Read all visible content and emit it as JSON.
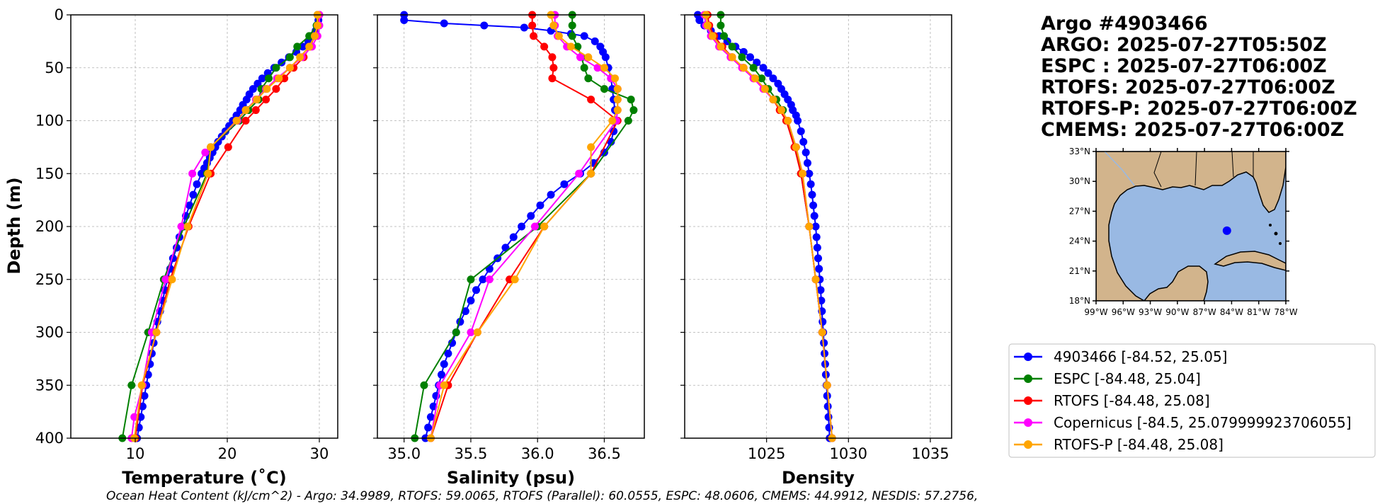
{
  "chart_data": [
    {
      "type": "line",
      "xlabel": "Temperature (˚C)",
      "ylabel": "Depth (m)",
      "xlim": [
        3,
        32
      ],
      "ylim": [
        400,
        0
      ],
      "xticks": [
        10,
        20,
        30
      ],
      "yticks": [
        0,
        50,
        100,
        150,
        200,
        250,
        300,
        350,
        400
      ],
      "grid": true,
      "series": [
        {
          "name": "4903466",
          "color": "#0000ff",
          "depth": [
            0,
            5,
            10,
            15,
            20,
            25,
            30,
            35,
            40,
            45,
            50,
            55,
            60,
            65,
            70,
            75,
            80,
            85,
            90,
            95,
            100,
            105,
            110,
            115,
            120,
            125,
            130,
            135,
            140,
            145,
            150,
            160,
            170,
            180,
            190,
            200,
            210,
            220,
            230,
            240,
            250,
            260,
            270,
            280,
            290,
            300,
            310,
            320,
            330,
            340,
            350,
            360,
            370,
            380,
            390,
            400
          ],
          "x": [
            29.9,
            29.9,
            29.8,
            29.6,
            29.2,
            28.8,
            28.2,
            27.5,
            26.7,
            25.9,
            25.1,
            24.4,
            23.8,
            23.3,
            22.8,
            22.4,
            22.1,
            21.7,
            21.4,
            21.0,
            20.6,
            20.2,
            19.8,
            19.4,
            19.0,
            18.7,
            18.4,
            18.1,
            17.8,
            17.5,
            17.2,
            16.7,
            16.3,
            15.9,
            15.5,
            15.2,
            14.8,
            14.5,
            14.1,
            13.8,
            13.5,
            13.2,
            13.0,
            12.7,
            12.4,
            12.2,
            12.0,
            11.8,
            11.6,
            11.4,
            11.2,
            11.0,
            10.8,
            10.6,
            10.4,
            10.2
          ]
        },
        {
          "name": "ESPC",
          "color": "#008000",
          "depth": [
            0,
            10,
            20,
            30,
            40,
            50,
            60,
            70,
            80,
            90,
            100,
            125,
            150,
            200,
            250,
            300,
            350,
            400
          ],
          "x": [
            29.8,
            29.7,
            28.9,
            27.6,
            26.8,
            25.3,
            24.5,
            23.7,
            23.4,
            22.3,
            21.3,
            18.2,
            17.8,
            15.3,
            13.1,
            11.4,
            9.6,
            8.6
          ]
        },
        {
          "name": "RTOFS",
          "color": "#ff0000",
          "depth": [
            0,
            10,
            20,
            30,
            40,
            50,
            60,
            70,
            80,
            90,
            100,
            125,
            150,
            200,
            250,
            300,
            350,
            400
          ],
          "x": [
            30.0,
            29.9,
            29.5,
            29.0,
            28.3,
            27.2,
            26.2,
            25.3,
            24.2,
            23.1,
            22.0,
            20.1,
            18.2,
            15.8,
            13.8,
            12.3,
            10.8,
            10.0
          ]
        },
        {
          "name": "Copernicus",
          "color": "#ff00ff",
          "depth": [
            0,
            10,
            20,
            30,
            40,
            50,
            60,
            70,
            80,
            90,
            100,
            130,
            150,
            200,
            250,
            300,
            350,
            380,
            400
          ],
          "x": [
            30.0,
            30.0,
            29.8,
            29.2,
            28.1,
            26.8,
            25.4,
            24.2,
            23.1,
            22.0,
            21.1,
            17.6,
            16.2,
            15.0,
            13.3,
            11.8,
            10.8,
            9.9,
            9.6
          ]
        },
        {
          "name": "RTOFS-P",
          "color": "#ffa500",
          "depth": [
            0,
            10,
            20,
            30,
            40,
            50,
            60,
            70,
            80,
            90,
            100,
            125,
            150,
            200,
            250,
            300,
            350,
            400
          ],
          "x": [
            29.8,
            29.8,
            29.5,
            28.9,
            27.9,
            26.8,
            25.6,
            24.3,
            23.2,
            22.0,
            21.0,
            18.2,
            17.9,
            15.7,
            14.0,
            12.3,
            10.7,
            9.9
          ]
        }
      ]
    },
    {
      "type": "line",
      "xlabel": "Salinity (psu)",
      "xlim": [
        34.8,
        36.8
      ],
      "ylim": [
        400,
        0
      ],
      "xticks": [
        35.0,
        35.5,
        36.0,
        36.5
      ],
      "xticklabels": [
        "35.0",
        "35.5",
        "36.0",
        "36.5"
      ],
      "grid": true,
      "series": [
        {
          "name": "4903466",
          "color": "#0000ff",
          "depth": [
            0,
            5,
            8,
            10,
            12,
            15,
            18,
            20,
            25,
            30,
            35,
            40,
            50,
            60,
            70,
            80,
            90,
            100,
            110,
            120,
            130,
            140,
            150,
            160,
            170,
            180,
            190,
            200,
            210,
            220,
            230,
            240,
            250,
            260,
            270,
            280,
            290,
            300,
            310,
            320,
            330,
            340,
            350,
            360,
            370,
            380,
            390,
            400
          ],
          "x": [
            35.0,
            35.0,
            35.3,
            35.6,
            35.9,
            36.1,
            36.25,
            36.35,
            36.43,
            36.47,
            36.49,
            36.51,
            36.53,
            36.55,
            36.56,
            36.57,
            36.58,
            36.58,
            36.57,
            36.55,
            36.5,
            36.42,
            36.32,
            36.2,
            36.1,
            36.02,
            35.95,
            35.88,
            35.82,
            35.76,
            35.7,
            35.64,
            35.59,
            35.54,
            35.5,
            35.46,
            35.42,
            35.39,
            35.36,
            35.33,
            35.3,
            35.28,
            35.26,
            35.24,
            35.22,
            35.2,
            35.18,
            35.16
          ]
        },
        {
          "name": "ESPC",
          "color": "#008000",
          "depth": [
            0,
            10,
            20,
            30,
            40,
            50,
            60,
            70,
            80,
            90,
            100,
            150,
            200,
            250,
            300,
            350,
            400
          ],
          "x": [
            36.26,
            36.26,
            36.26,
            36.3,
            36.33,
            36.35,
            36.38,
            36.5,
            36.7,
            36.72,
            36.68,
            36.4,
            36.0,
            35.5,
            35.39,
            35.15,
            35.08
          ]
        },
        {
          "name": "RTOFS",
          "color": "#ff0000",
          "depth": [
            0,
            10,
            20,
            30,
            40,
            50,
            60,
            80,
            100,
            150,
            200,
            250,
            300,
            350,
            400
          ],
          "x": [
            35.96,
            35.96,
            35.97,
            36.05,
            36.11,
            36.12,
            36.11,
            36.4,
            36.6,
            36.4,
            36.05,
            35.79,
            35.55,
            35.33,
            35.2
          ]
        },
        {
          "name": "Copernicus",
          "color": "#ff00ff",
          "depth": [
            0,
            10,
            20,
            30,
            40,
            50,
            60,
            70,
            80,
            90,
            100,
            150,
            200,
            250,
            300,
            350,
            400
          ],
          "x": [
            36.13,
            36.13,
            36.15,
            36.22,
            36.32,
            36.45,
            36.55,
            36.6,
            36.6,
            36.6,
            36.59,
            36.31,
            35.98,
            35.64,
            35.5,
            35.27,
            35.2
          ]
        },
        {
          "name": "RTOFS-P",
          "color": "#ffa500",
          "depth": [
            0,
            10,
            20,
            30,
            40,
            50,
            60,
            70,
            80,
            90,
            100,
            125,
            150,
            200,
            250,
            300,
            350,
            400
          ],
          "x": [
            36.1,
            36.12,
            36.16,
            36.25,
            36.38,
            36.5,
            36.58,
            36.6,
            36.6,
            36.6,
            36.56,
            36.4,
            36.4,
            36.05,
            35.83,
            35.55,
            35.3,
            35.2
          ]
        }
      ]
    },
    {
      "type": "line",
      "xlabel": "Density",
      "xlim": [
        1020.0,
        1036.3
      ],
      "ylim": [
        400,
        0
      ],
      "xticks": [
        1025,
        1030,
        1035
      ],
      "grid": true,
      "series": [
        {
          "name": "4903466",
          "color": "#0000ff",
          "depth": [
            0,
            5,
            10,
            15,
            20,
            25,
            30,
            35,
            40,
            45,
            50,
            55,
            60,
            65,
            70,
            75,
            80,
            85,
            90,
            95,
            100,
            110,
            120,
            130,
            140,
            150,
            160,
            170,
            180,
            190,
            200,
            210,
            220,
            230,
            240,
            250,
            260,
            270,
            280,
            290,
            300,
            310,
            320,
            330,
            340,
            350,
            360,
            370,
            380,
            390,
            400
          ],
          "x": [
            1020.8,
            1020.9,
            1021.2,
            1021.6,
            1022.1,
            1022.6,
            1023.1,
            1023.6,
            1024.0,
            1024.4,
            1024.8,
            1025.1,
            1025.4,
            1025.7,
            1025.9,
            1026.1,
            1026.3,
            1026.5,
            1026.6,
            1026.8,
            1026.9,
            1027.1,
            1027.25,
            1027.4,
            1027.5,
            1027.6,
            1027.7,
            1027.78,
            1027.85,
            1027.92,
            1028.0,
            1028.05,
            1028.1,
            1028.15,
            1028.2,
            1028.25,
            1028.3,
            1028.34,
            1028.38,
            1028.42,
            1028.46,
            1028.5,
            1028.54,
            1028.58,
            1028.62,
            1028.66,
            1028.7,
            1028.74,
            1028.78,
            1028.82,
            1028.85
          ]
        },
        {
          "name": "ESPC",
          "color": "#008000",
          "depth": [
            0,
            10,
            20,
            30,
            40,
            50,
            60,
            70,
            80,
            90,
            100,
            125,
            150,
            200,
            250,
            300,
            350,
            400
          ],
          "x": [
            1022.2,
            1022.2,
            1022.4,
            1022.9,
            1023.5,
            1024.2,
            1024.7,
            1025.1,
            1025.6,
            1026.0,
            1026.2,
            1026.8,
            1027.1,
            1027.6,
            1028.0,
            1028.4,
            1028.7,
            1029.0
          ]
        },
        {
          "name": "RTOFS",
          "color": "#ff0000",
          "depth": [
            0,
            10,
            20,
            30,
            40,
            50,
            60,
            70,
            80,
            90,
            100,
            125,
            150,
            200,
            250,
            300,
            350,
            400
          ],
          "x": [
            1021.4,
            1021.5,
            1021.8,
            1022.3,
            1022.9,
            1023.6,
            1024.2,
            1024.9,
            1025.4,
            1025.8,
            1026.2,
            1026.7,
            1027.1,
            1027.6,
            1028.0,
            1028.4,
            1028.7,
            1029.0
          ]
        },
        {
          "name": "Copernicus",
          "color": "#ff00ff",
          "depth": [
            0,
            10,
            20,
            30,
            40,
            50,
            60,
            70,
            80,
            90,
            100,
            125,
            150,
            200,
            250,
            300,
            350,
            400
          ],
          "x": [
            1021.2,
            1021.3,
            1021.6,
            1022.1,
            1022.8,
            1023.5,
            1024.2,
            1024.8,
            1025.4,
            1025.9,
            1026.3,
            1026.8,
            1027.2,
            1027.6,
            1028.0,
            1028.4,
            1028.7,
            1029.0
          ]
        },
        {
          "name": "RTOFS-P",
          "color": "#ffa500",
          "depth": [
            0,
            10,
            20,
            30,
            40,
            50,
            60,
            70,
            80,
            90,
            100,
            125,
            150,
            200,
            250,
            300,
            350,
            400
          ],
          "x": [
            1021.3,
            1021.4,
            1021.7,
            1022.2,
            1022.9,
            1023.6,
            1024.3,
            1024.9,
            1025.4,
            1025.9,
            1026.3,
            1026.8,
            1027.2,
            1027.6,
            1028.0,
            1028.4,
            1028.7,
            1029.0
          ]
        }
      ]
    }
  ],
  "title_lines": [
    "Argo #4903466",
    "ARGO: 2025-07-27T05:50Z",
    "ESPC : 2025-07-27T06:00Z",
    "RTOFS: 2025-07-27T06:00Z",
    "RTOFS-P: 2025-07-27T06:00Z",
    "CMEMS: 2025-07-27T06:00Z"
  ],
  "map": {
    "lat_ticks": [
      "33°N",
      "30°N",
      "27°N",
      "24°N",
      "21°N",
      "18°N"
    ],
    "lon_ticks": [
      "99°W",
      "96°W",
      "93°W",
      "90°W",
      "87°W",
      "84°W",
      "81°W",
      "78°W"
    ],
    "lon_range": [
      -99,
      -78
    ],
    "lat_range": [
      18,
      33
    ],
    "float_lon": -84.52,
    "float_lat": 25.05,
    "land_color": "#d2b48c",
    "ocean_color": "#99b9e3",
    "marker_color": "#0000ff"
  },
  "legend": [
    {
      "label": "4903466 [-84.52, 25.05]",
      "color": "#0000ff"
    },
    {
      "label": "ESPC [-84.48, 25.04]",
      "color": "#008000"
    },
    {
      "label": "RTOFS [-84.48, 25.08]",
      "color": "#ff0000"
    },
    {
      "label": "Copernicus [-84.5, 25.079999923706055]",
      "color": "#ff00ff"
    },
    {
      "label": "RTOFS-P [-84.48, 25.08]",
      "color": "#ffa500"
    }
  ],
  "footer": "Ocean Heat Content (kJ/cm^2) - Argo: 34.9989,  RTOFS: 59.0065,  RTOFS (Parallel): 60.0555,  ESPC: 48.0606,  CMEMS: 44.9912,  NESDIS: 57.2756,"
}
